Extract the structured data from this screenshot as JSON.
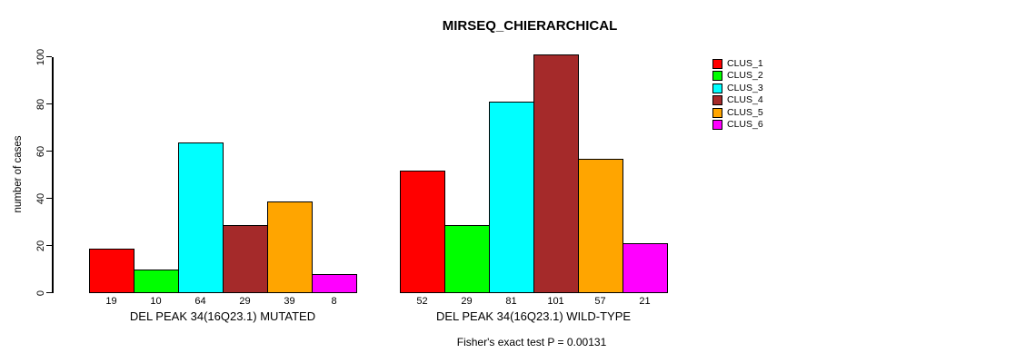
{
  "title": "MIRSEQ_CHIERARCHICAL",
  "chart_data": {
    "type": "bar",
    "title": "MIRSEQ_CHIERARCHICAL",
    "xlabel": "",
    "ylabel": "number of cases",
    "ylim": [
      0,
      100
    ],
    "yticks": [
      0,
      20,
      40,
      60,
      80,
      100
    ],
    "grid": false,
    "legend_position": "right",
    "legend": [
      {
        "label": "CLUS_1",
        "color": "#ff0000"
      },
      {
        "label": "CLUS_2",
        "color": "#00ff00"
      },
      {
        "label": "CLUS_3",
        "color": "#00ffff"
      },
      {
        "label": "CLUS_4",
        "color": "#a52a2a"
      },
      {
        "label": "CLUS_5",
        "color": "#ffa500"
      },
      {
        "label": "CLUS_6",
        "color": "#ff00ff"
      }
    ],
    "series_colors": [
      "#ff0000",
      "#00ff00",
      "#00ffff",
      "#a52a2a",
      "#ffa500",
      "#ff00ff"
    ],
    "groups": [
      {
        "label": "DEL PEAK 34(16Q23.1) MUTATED",
        "values": [
          19,
          10,
          64,
          29,
          39,
          8
        ]
      },
      {
        "label": "DEL PEAK 34(16Q23.1) WILD-TYPE",
        "values": [
          52,
          29,
          81,
          101,
          57,
          21
        ]
      }
    ],
    "annotation": "Fisher's exact test P = 0.00131"
  }
}
